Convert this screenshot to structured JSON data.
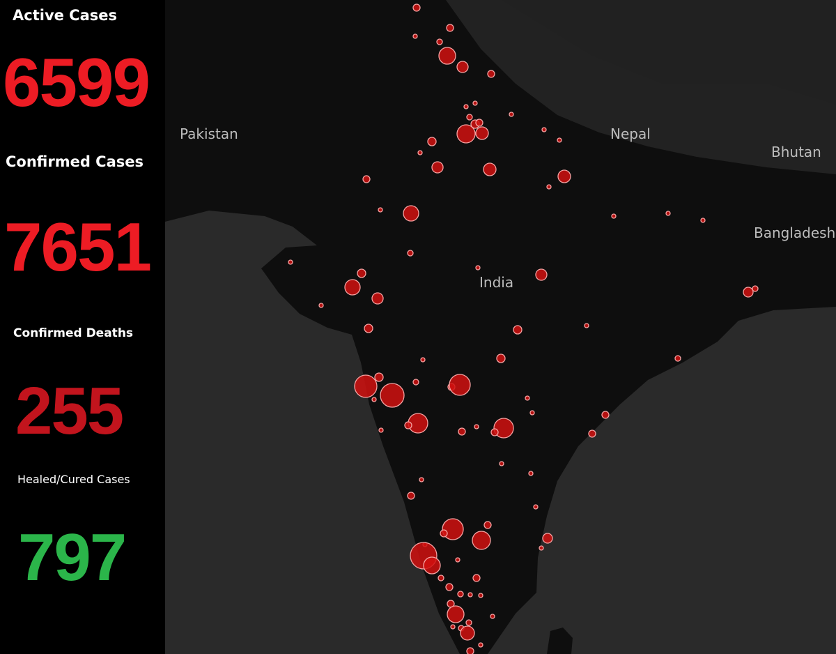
{
  "kpis": [
    {
      "label": "Active Cases",
      "value": 6599
    },
    {
      "label": "Confirmed Cases",
      "value": 7651
    },
    {
      "label": "Confirmed Deaths",
      "value": 255
    },
    {
      "label": "Healed/Cured Cases",
      "value": 797
    }
  ],
  "map": {
    "places": [
      "Pakistan",
      "Nepal",
      "Bhutan",
      "Bangladesh",
      "India"
    ]
  }
}
